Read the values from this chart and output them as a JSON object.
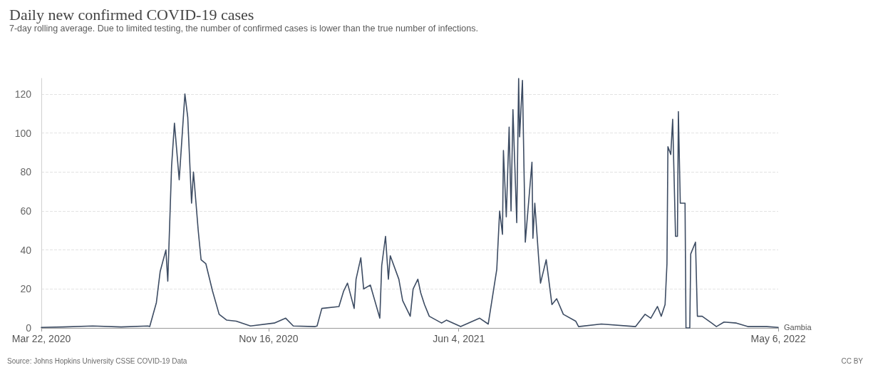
{
  "chart_data": {
    "type": "line",
    "title": "Daily new confirmed COVID-19 cases",
    "subtitle": "7-day rolling average. Due to limited testing, the number of confirmed cases is lower than the true number of infections.",
    "x": [
      "2020-03-22",
      "2020-04-14",
      "2020-05-15",
      "2020-06-14",
      "2020-07-12",
      "2020-07-14",
      "2020-07-21",
      "2020-07-25",
      "2020-07-31",
      "2020-08-02",
      "2020-08-06",
      "2020-08-09",
      "2020-08-14",
      "2020-08-20",
      "2020-08-23",
      "2020-08-27",
      "2020-08-29",
      "2020-09-03",
      "2020-09-06",
      "2020-09-11",
      "2020-09-18",
      "2020-09-25",
      "2020-10-03",
      "2020-10-13",
      "2020-10-28",
      "2020-11-22",
      "2020-12-04",
      "2020-12-12",
      "2021-01-04",
      "2021-01-06",
      "2021-01-11",
      "2021-01-29",
      "2021-02-03",
      "2021-02-07",
      "2021-02-14",
      "2021-02-16",
      "2021-02-21",
      "2021-02-24",
      "2021-03-03",
      "2021-03-13",
      "2021-03-15",
      "2021-03-19",
      "2021-03-22",
      "2021-03-24",
      "2021-04-02",
      "2021-04-06",
      "2021-04-14",
      "2021-04-17",
      "2021-04-22",
      "2021-04-25",
      "2021-04-29",
      "2021-05-04",
      "2021-05-17",
      "2021-05-22",
      "2021-06-06",
      "2021-06-26",
      "2021-07-05",
      "2021-07-14",
      "2021-07-17",
      "2021-07-20",
      "2021-07-21",
      "2021-07-24",
      "2021-07-27",
      "2021-07-29",
      "2021-07-31",
      "2021-08-04",
      "2021-08-06",
      "2021-08-07",
      "2021-08-10",
      "2021-08-13",
      "2021-08-20",
      "2021-08-21",
      "2021-08-23",
      "2021-08-27",
      "2021-08-29",
      "2021-09-04",
      "2021-09-10",
      "2021-09-15",
      "2021-09-22",
      "2021-10-05",
      "2021-10-08",
      "2021-11-01",
      "2021-12-07",
      "2021-12-17",
      "2021-12-23",
      "2021-12-30",
      "2022-01-03",
      "2022-01-07",
      "2022-01-09",
      "2022-01-10",
      "2022-01-13",
      "2022-01-15",
      "2022-01-18",
      "2022-01-20",
      "2022-01-21",
      "2022-01-23",
      "2022-01-28",
      "2022-01-29",
      "2022-02-02",
      "2022-02-03",
      "2022-02-08",
      "2022-02-10",
      "2022-02-15",
      "2022-02-25",
      "2022-03-02",
      "2022-03-10",
      "2022-03-23",
      "2022-04-04",
      "2022-04-24",
      "2022-05-06"
    ],
    "series": [
      {
        "name": "Gambia",
        "color": "#3d4c63",
        "values": [
          0.3,
          0.5,
          1,
          0.5,
          1,
          0.7,
          13,
          29,
          40,
          24,
          83,
          105,
          76,
          120,
          108,
          64,
          80,
          50,
          35,
          33,
          19,
          7,
          4,
          3.5,
          1,
          2.5,
          5,
          1,
          0.7,
          1,
          10,
          11,
          19,
          23,
          10,
          25,
          36,
          20,
          22,
          5,
          32,
          47,
          25,
          37,
          25,
          14,
          6,
          20,
          25,
          18,
          12,
          6,
          2.5,
          4,
          0.7,
          5,
          2,
          30,
          60,
          48,
          91,
          57,
          103,
          60,
          112,
          54,
          128,
          98,
          127,
          44,
          85,
          46,
          64,
          36,
          23,
          35,
          12,
          15,
          7,
          3.5,
          0.7,
          2,
          0.7,
          7,
          5,
          11,
          6,
          12,
          33,
          93,
          89,
          107,
          47,
          47,
          111,
          64,
          64,
          0,
          0,
          38,
          44,
          6,
          6,
          2.5,
          0.7,
          3,
          2.5,
          0.7,
          0.7,
          0.3
        ]
      }
    ],
    "xlim": [
      "2020-03-22",
      "2022-05-06"
    ],
    "xticks": [
      {
        "value": "2020-03-22",
        "label": "Mar 22, 2020"
      },
      {
        "value": "2020-11-16",
        "label": "Nov 16, 2020"
      },
      {
        "value": "2021-06-04",
        "label": "Jun 4, 2021"
      },
      {
        "value": "2022-05-06",
        "label": "May 6, 2022"
      }
    ],
    "ylim": [
      0,
      128
    ],
    "yticks": [
      0,
      20,
      40,
      60,
      80,
      100,
      120
    ],
    "grid": "y",
    "legend": false,
    "marker": "none",
    "line_style": "solid",
    "annotations": [
      "Source: Johns Hopkins University CSSE COVID-19 Data",
      "CC BY"
    ]
  }
}
